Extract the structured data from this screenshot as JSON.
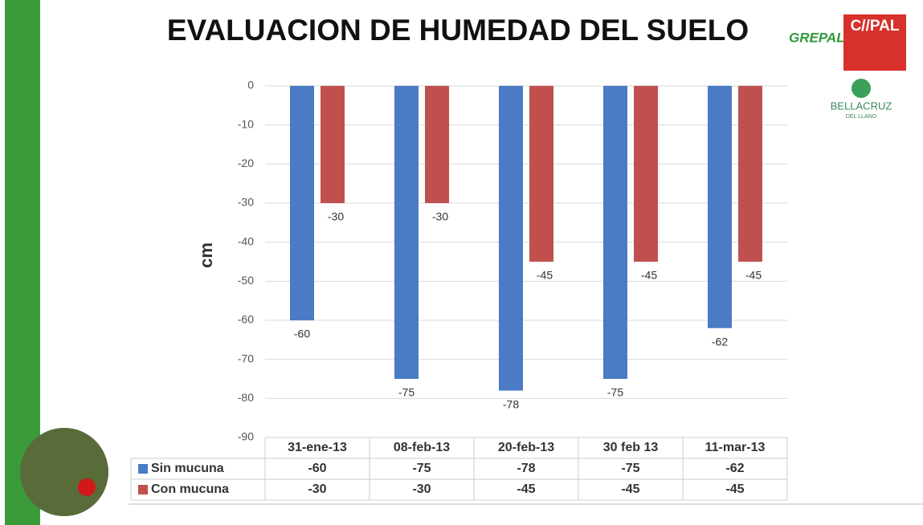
{
  "chart_data": {
    "type": "bar",
    "title": "EVALUACION DE HUMEDAD DEL SUELO",
    "y_label": "cm",
    "categories": [
      "31-ene-13",
      "08-feb-13",
      "20-feb-13",
      "30 feb 13",
      "11-mar-13"
    ],
    "series": [
      {
        "name": "Sin mucuna",
        "color": "#4a7bc4",
        "values": [
          -60,
          -75,
          -78,
          -75,
          -62
        ]
      },
      {
        "name": "Con mucuna",
        "color": "#c0504d",
        "values": [
          -30,
          -30,
          -45,
          -45,
          -45
        ]
      }
    ],
    "ylim": [
      -90,
      0
    ],
    "yticks": [
      0,
      -10,
      -20,
      -30,
      -40,
      -50,
      -60,
      -70,
      -80,
      -90
    ],
    "grid": true,
    "logos": [
      "GREPALMA",
      "C//PAL",
      "BELLACRUZ",
      "DEL LLANO"
    ]
  }
}
